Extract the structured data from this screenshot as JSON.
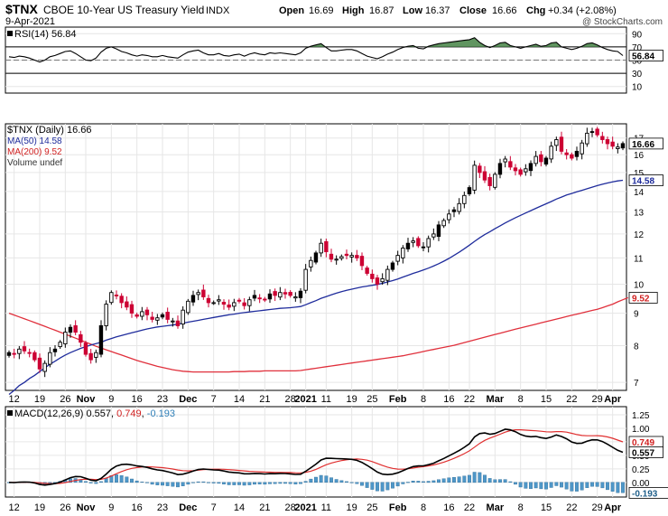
{
  "header": {
    "symbol": "$TNX",
    "name": "CBOE 10-Year US Treasury Yield",
    "exchange": "INDX",
    "date": "9-Apr-2021",
    "watermark": "@ StockCharts.com",
    "open_label": "Open",
    "open": "16.69",
    "high_label": "High",
    "high": "16.87",
    "low_label": "Low",
    "low": "16.37",
    "close_label": "Close",
    "close": "16.66",
    "chg_label": "Chg",
    "chg": "+0.34 (+2.08%)"
  },
  "colors": {
    "up": "#000000",
    "down": "#cc0033",
    "ma50": "#1f2c9c",
    "ma200": "#e0303c",
    "rsi": "#000000",
    "rsi_fill": "#4f8a4f",
    "macd": "#000000",
    "signal": "#e03030",
    "hist": "#4f97c8",
    "grid": "#e6e6e6"
  },
  "x_axis": {
    "labels": [
      {
        "i": 1,
        "text": "12",
        "bold": false
      },
      {
        "i": 6,
        "text": "19",
        "bold": false
      },
      {
        "i": 11,
        "text": "26",
        "bold": false
      },
      {
        "i": 15,
        "text": "Nov",
        "bold": true
      },
      {
        "i": 20,
        "text": "9",
        "bold": false
      },
      {
        "i": 25,
        "text": "16",
        "bold": false
      },
      {
        "i": 30,
        "text": "23",
        "bold": false
      },
      {
        "i": 35,
        "text": "Dec",
        "bold": true
      },
      {
        "i": 40,
        "text": "7",
        "bold": false
      },
      {
        "i": 45,
        "text": "14",
        "bold": false
      },
      {
        "i": 50,
        "text": "21",
        "bold": false
      },
      {
        "i": 55,
        "text": "28",
        "bold": false
      },
      {
        "i": 58,
        "text": "2021",
        "bold": true
      },
      {
        "i": 62,
        "text": "11",
        "bold": false
      },
      {
        "i": 67,
        "text": "19",
        "bold": false
      },
      {
        "i": 71,
        "text": "25",
        "bold": false
      },
      {
        "i": 76,
        "text": "Feb",
        "bold": true
      },
      {
        "i": 81,
        "text": "8",
        "bold": false
      },
      {
        "i": 86,
        "text": "16",
        "bold": false
      },
      {
        "i": 90,
        "text": "22",
        "bold": false
      },
      {
        "i": 95,
        "text": "Mar",
        "bold": true
      },
      {
        "i": 100,
        "text": "8",
        "bold": false
      },
      {
        "i": 105,
        "text": "15",
        "bold": false
      },
      {
        "i": 110,
        "text": "22",
        "bold": false
      },
      {
        "i": 115,
        "text": "29",
        "bold": false
      },
      {
        "i": 118,
        "text": "Apr",
        "bold": true
      }
    ]
  },
  "chart_data": {
    "type": "candlestick",
    "title": "$TNX CBOE 10-Year US Treasury Yield INDX",
    "period": "Daily",
    "last_close": 16.66,
    "price_scale": "log",
    "price_ylim": [
      6.8,
      17.9
    ],
    "price_ticks": [
      7,
      8,
      9,
      10,
      11,
      12,
      13,
      14,
      15,
      16,
      17
    ],
    "closes": [
      7.8,
      7.75,
      7.9,
      7.85,
      7.8,
      7.6,
      7.35,
      7.5,
      7.8,
      7.9,
      8.1,
      8.4,
      8.55,
      8.4,
      8.1,
      7.75,
      7.6,
      7.8,
      8.6,
      9.3,
      9.7,
      9.6,
      9.35,
      9.2,
      9.0,
      8.9,
      9.05,
      8.95,
      8.8,
      8.85,
      8.95,
      8.8,
      8.75,
      8.6,
      9.1,
      9.4,
      9.6,
      9.7,
      9.55,
      9.35,
      9.35,
      9.45,
      9.3,
      9.2,
      9.35,
      9.4,
      9.25,
      9.45,
      9.6,
      9.5,
      9.45,
      9.65,
      9.6,
      9.7,
      9.65,
      9.6,
      9.55,
      9.75,
      10.55,
      10.9,
      11.2,
      11.6,
      11.25,
      10.95,
      10.95,
      11.05,
      11.1,
      11.1,
      11.0,
      10.7,
      10.4,
      10.2,
      10.0,
      10.2,
      10.55,
      10.8,
      11.1,
      11.4,
      11.6,
      11.7,
      11.5,
      11.45,
      11.8,
      12.0,
      12.4,
      12.6,
      12.9,
      13.1,
      13.4,
      13.8,
      14.2,
      15.4,
      15.0,
      14.6,
      14.3,
      14.9,
      15.5,
      15.75,
      15.3,
      15.1,
      14.9,
      15.2,
      15.5,
      15.9,
      15.6,
      15.8,
      16.5,
      16.9,
      16.2,
      16.0,
      15.8,
      16.2,
      16.7,
      17.3,
      17.4,
      17.2,
      16.9,
      16.65,
      16.5,
      16.45,
      16.66
    ],
    "ma50": [
      6.7,
      6.8,
      6.92,
      7.0,
      7.1,
      7.18,
      7.28,
      7.38,
      7.48,
      7.56,
      7.65,
      7.73,
      7.8,
      7.86,
      7.92,
      7.97,
      8.02,
      8.06,
      8.1,
      8.16,
      8.21,
      8.26,
      8.3,
      8.34,
      8.38,
      8.42,
      8.46,
      8.5,
      8.53,
      8.56,
      8.58,
      8.6,
      8.62,
      8.65,
      8.68,
      8.71,
      8.74,
      8.77,
      8.8,
      8.83,
      8.86,
      8.89,
      8.92,
      8.95,
      8.97,
      9.0,
      9.02,
      9.04,
      9.06,
      9.08,
      9.1,
      9.12,
      9.14,
      9.16,
      9.17,
      9.18,
      9.2,
      9.22,
      9.28,
      9.35,
      9.42,
      9.5,
      9.56,
      9.62,
      9.68,
      9.73,
      9.78,
      9.82,
      9.86,
      9.9,
      9.93,
      9.96,
      9.99,
      10.03,
      10.08,
      10.13,
      10.19,
      10.26,
      10.33,
      10.4,
      10.46,
      10.53,
      10.6,
      10.68,
      10.77,
      10.87,
      10.98,
      11.1,
      11.23,
      11.37,
      11.52,
      11.68,
      11.83,
      11.97,
      12.1,
      12.23,
      12.36,
      12.49,
      12.61,
      12.73,
      12.84,
      12.95,
      13.06,
      13.17,
      13.28,
      13.39,
      13.5,
      13.62,
      13.72,
      13.82,
      13.9,
      13.98,
      14.06,
      14.14,
      14.22,
      14.3,
      14.37,
      14.44,
      14.5,
      14.55,
      14.58
    ],
    "ma200": [
      9.0,
      8.94,
      8.88,
      8.82,
      8.76,
      8.7,
      8.64,
      8.58,
      8.52,
      8.46,
      8.4,
      8.34,
      8.28,
      8.22,
      8.16,
      8.1,
      8.04,
      7.98,
      7.93,
      7.88,
      7.83,
      7.78,
      7.73,
      7.68,
      7.63,
      7.58,
      7.54,
      7.5,
      7.46,
      7.42,
      7.39,
      7.36,
      7.33,
      7.31,
      7.29,
      7.28,
      7.27,
      7.27,
      7.27,
      7.27,
      7.27,
      7.27,
      7.27,
      7.27,
      7.28,
      7.28,
      7.28,
      7.29,
      7.29,
      7.29,
      7.3,
      7.3,
      7.3,
      7.3,
      7.3,
      7.3,
      7.3,
      7.31,
      7.33,
      7.35,
      7.37,
      7.39,
      7.41,
      7.43,
      7.45,
      7.47,
      7.49,
      7.51,
      7.53,
      7.55,
      7.57,
      7.59,
      7.61,
      7.63,
      7.65,
      7.67,
      7.69,
      7.71,
      7.74,
      7.77,
      7.8,
      7.83,
      7.86,
      7.89,
      7.92,
      7.95,
      7.98,
      8.01,
      8.05,
      8.09,
      8.13,
      8.17,
      8.21,
      8.25,
      8.29,
      8.33,
      8.37,
      8.41,
      8.45,
      8.49,
      8.53,
      8.57,
      8.61,
      8.65,
      8.69,
      8.73,
      8.77,
      8.81,
      8.85,
      8.89,
      8.93,
      8.97,
      9.01,
      9.05,
      9.09,
      9.13,
      9.18,
      9.24,
      9.3,
      9.38,
      9.45,
      9.52
    ],
    "rsi": [
      55,
      54,
      56,
      55,
      53,
      50,
      47,
      50,
      55,
      57,
      60,
      63,
      64,
      60,
      55,
      50,
      49,
      53,
      62,
      68,
      70,
      67,
      63,
      61,
      58,
      56,
      58,
      57,
      55,
      55,
      57,
      55,
      54,
      53,
      58,
      62,
      64,
      65,
      61,
      58,
      58,
      60,
      57,
      56,
      58,
      59,
      56,
      59,
      61,
      59,
      58,
      61,
      60,
      61,
      60,
      59,
      58,
      61,
      68,
      71,
      73,
      75,
      69,
      64,
      64,
      65,
      66,
      66,
      64,
      60,
      56,
      54,
      52,
      55,
      59,
      62,
      66,
      69,
      71,
      72,
      68,
      67,
      71,
      73,
      75,
      76,
      77,
      78,
      79,
      80,
      81,
      84,
      77,
      72,
      69,
      72,
      76,
      77,
      72,
      70,
      68,
      70,
      72,
      74,
      71,
      72,
      76,
      77,
      70,
      68,
      66,
      68,
      71,
      75,
      76,
      73,
      69,
      66,
      64,
      63,
      56.84
    ],
    "rsi_ticks": [
      10,
      30,
      50,
      70,
      90
    ],
    "rsi_ylim": [
      0,
      100
    ],
    "rsi_label": "RSI(14) 56.84",
    "price_legend": "$TNX (Daily) 16.66",
    "ma50_legend": "MA(50) 14.58",
    "ma200_legend": "MA(200) 9.52",
    "volume_legend": "Volume undef",
    "macd_label": "MACD(12,26,9) 0.557, 0.749, -0.193",
    "macd_ylim": [
      -0.27,
      1.4
    ],
    "macd_ticks": [
      0,
      0.25,
      0.5,
      0.75,
      1,
      1.25
    ],
    "macd_tick_labels": [
      "0.00",
      "0.25",
      "0.50",
      "0.75",
      "1.00",
      "1.25"
    ],
    "macd_last": "0.557",
    "signal_last": "0.749",
    "hist_last": "-0.193",
    "rsi_last": "56.84",
    "ma50_last": "14.58",
    "ma200_last": "9.52",
    "close_last": "16.66"
  }
}
